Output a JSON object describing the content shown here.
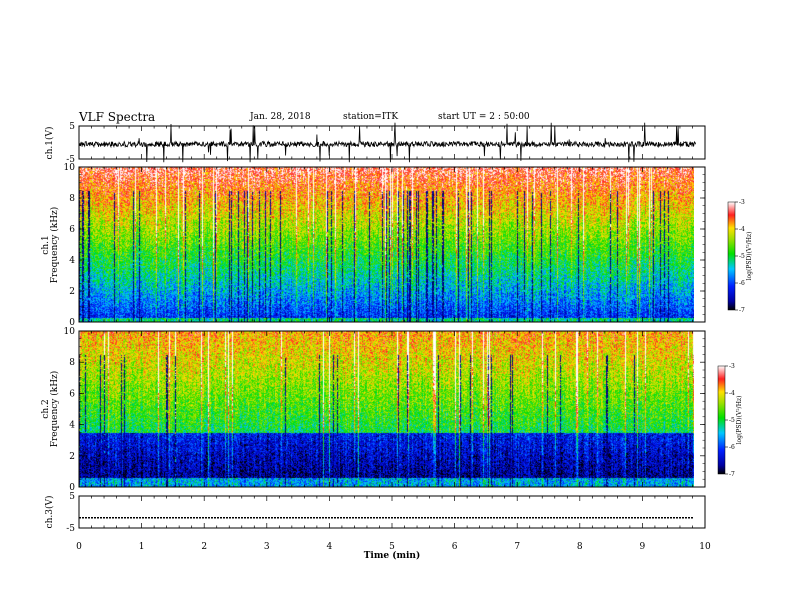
{
  "header": {
    "title": "VLF Spectra",
    "date": "Jan. 28, 2018",
    "station": "station=ITK",
    "start_ut": "start UT = 2 : 50:00"
  },
  "chart_data": [
    {
      "type": "line",
      "name": "ch1-waveform",
      "ylabel": "ch.1(V)",
      "ylim": [
        -5,
        5
      ],
      "yticks": [
        "5",
        "-5"
      ],
      "xlim": [
        0,
        10
      ],
      "description_level": "noisy waveform around -0.5 V with spikes"
    },
    {
      "type": "heatmap",
      "name": "ch1-spectrogram",
      "ylabel": "ch.1 Frequency (kHz)",
      "ylabel_lines": [
        "ch.1",
        "Frequency (kHz)"
      ],
      "ylim": [
        0,
        10
      ],
      "yticks": [
        "0",
        "2",
        "4",
        "6",
        "8",
        "10"
      ],
      "xlim": [
        0,
        10
      ],
      "data_end_min": 9.82,
      "colorbar": {
        "label": "log(PSD)(V²/Hz)",
        "range": [
          -7,
          -3
        ],
        "ticks": [
          "-3",
          "-4",
          "-5",
          "-6",
          "-7"
        ]
      }
    },
    {
      "type": "heatmap",
      "name": "ch2-spectrogram",
      "ylabel": "ch.2 Frequency (kHz)",
      "ylabel_lines": [
        "ch.2",
        "Frequency (kHz)"
      ],
      "ylim": [
        0,
        10
      ],
      "yticks": [
        "0",
        "2",
        "4",
        "6",
        "8",
        "10"
      ],
      "xlim": [
        0,
        10
      ],
      "data_end_min": 9.82,
      "colorbar": {
        "label": "log(PSD)(V²/Hz)",
        "range": [
          -7,
          -3
        ],
        "ticks": [
          "-3",
          "-4",
          "-5",
          "-6",
          "-7"
        ]
      }
    },
    {
      "type": "line",
      "name": "ch3-waveform",
      "ylabel": "ch.3(V)",
      "ylim": [
        -5,
        5
      ],
      "yticks": [
        "5",
        "-5"
      ],
      "xlim": [
        0,
        10
      ],
      "xlabel": "Time (min)",
      "xticks": [
        "0",
        "1",
        "2",
        "3",
        "4",
        "5",
        "6",
        "7",
        "8",
        "9",
        "10"
      ],
      "flat_level_v": -1.8
    }
  ]
}
